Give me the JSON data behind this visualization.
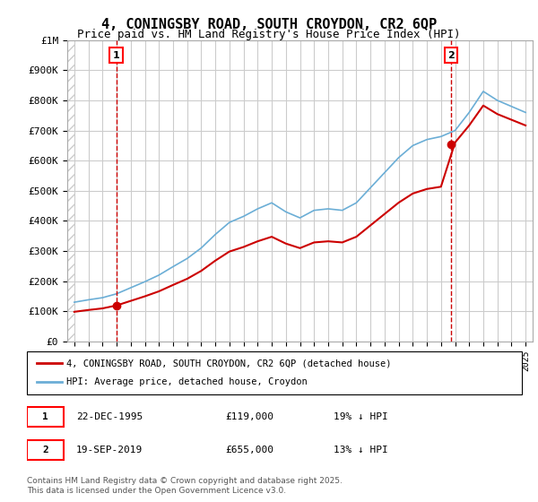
{
  "title": "4, CONINGSBY ROAD, SOUTH CROYDON, CR2 6QP",
  "subtitle": "Price paid vs. HM Land Registry's House Price Index (HPI)",
  "ylabel_ticks": [
    "£0",
    "£100K",
    "£200K",
    "£300K",
    "£400K",
    "£500K",
    "£600K",
    "£700K",
    "£800K",
    "£900K",
    "£1M"
  ],
  "ytick_values": [
    0,
    100000,
    200000,
    300000,
    400000,
    500000,
    600000,
    700000,
    800000,
    900000,
    1000000
  ],
  "xlim": [
    1992.5,
    2025.5
  ],
  "ylim": [
    0,
    1000000
  ],
  "sale1": {
    "year": 1995.97,
    "price": 119000,
    "label": "1",
    "date": "22-DEC-1995",
    "pct": "19%"
  },
  "sale2": {
    "year": 2019.72,
    "price": 655000,
    "label": "2",
    "date": "19-SEP-2019",
    "pct": "13%"
  },
  "hpi_color": "#6baed6",
  "sale_color": "#cc0000",
  "dashed_color": "#cc0000",
  "bg_hatch_color": "#d0d0d0",
  "legend1": "4, CONINGSBY ROAD, SOUTH CROYDON, CR2 6QP (detached house)",
  "legend2": "HPI: Average price, detached house, Croydon",
  "footnote1": "Contains HM Land Registry data © Crown copyright and database right 2025.",
  "footnote2": "This data is licensed under the Open Government Licence v3.0.",
  "table_rows": [
    {
      "num": "1",
      "date": "22-DEC-1995",
      "price": "£119,000",
      "pct": "19% ↓ HPI"
    },
    {
      "num": "2",
      "date": "19-SEP-2019",
      "price": "£655,000",
      "pct": "13% ↓ HPI"
    }
  ]
}
